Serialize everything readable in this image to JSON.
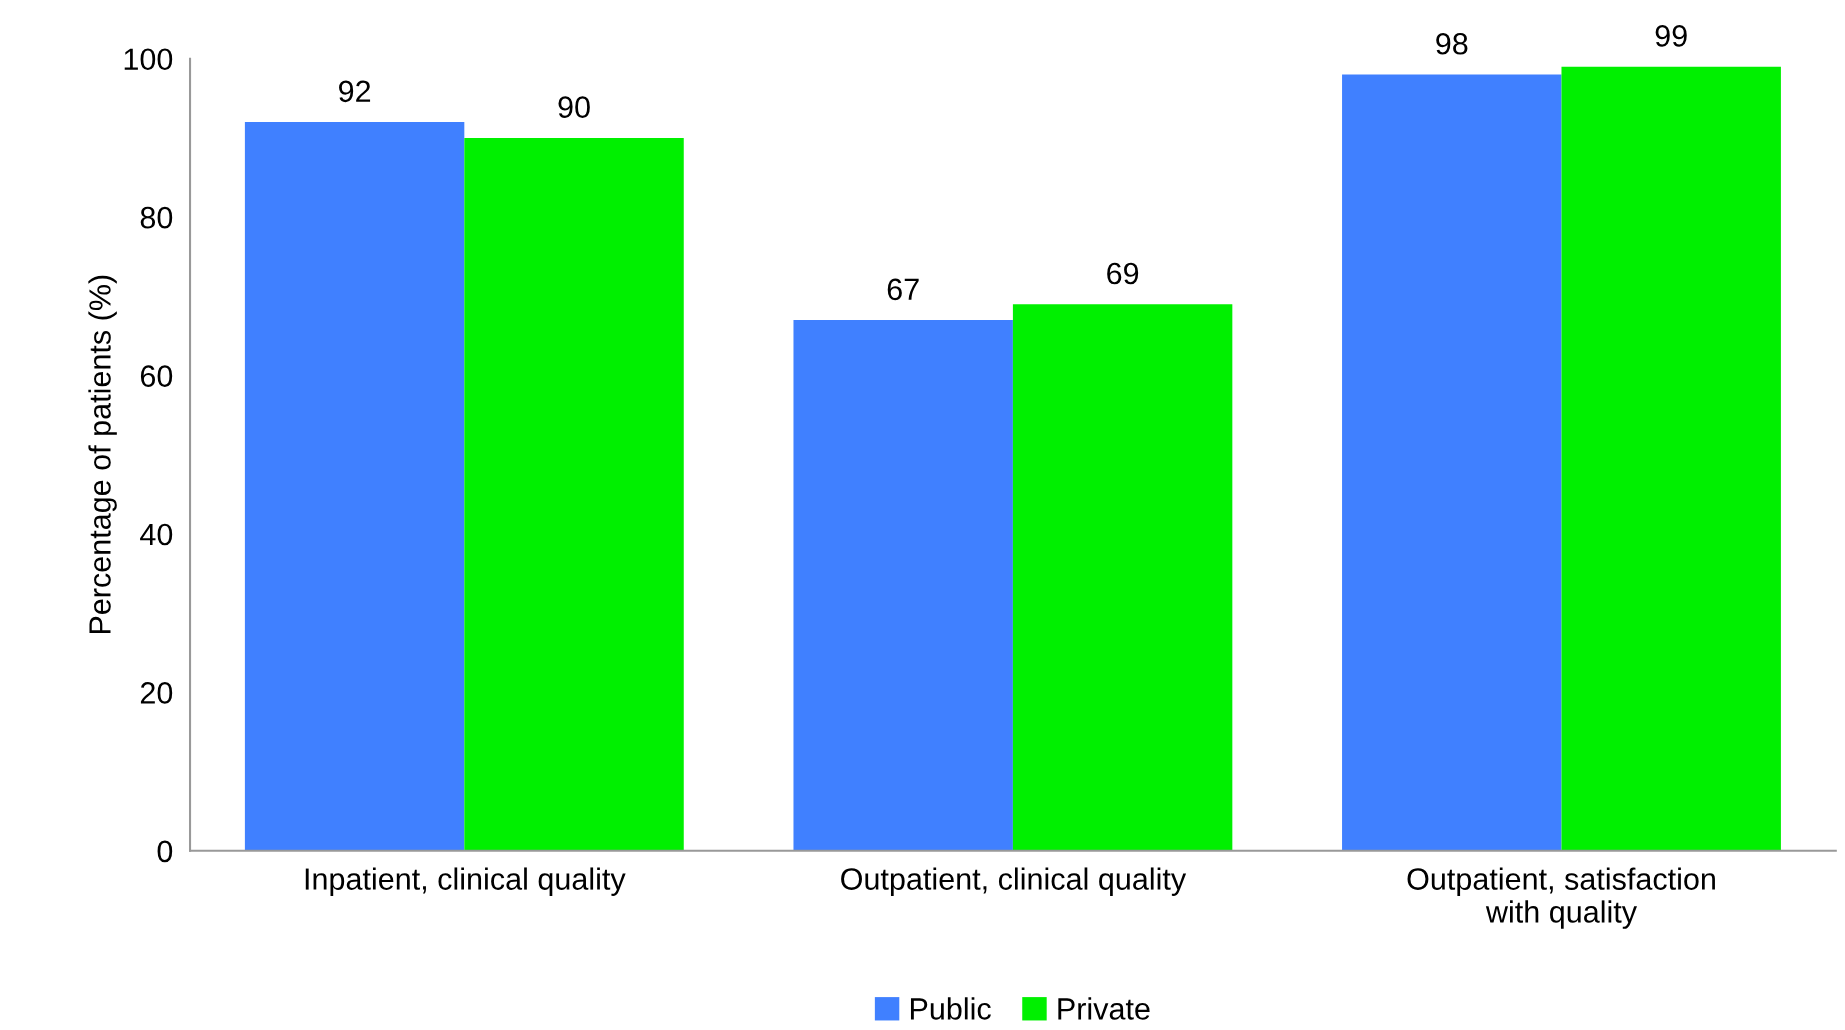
{
  "chart_data": {
    "type": "bar",
    "ylabel": "Percentage of patients (%)",
    "categories": [
      "Inpatient, clinical quality",
      "Outpatient, clinical quality",
      "Outpatient, satisfaction\nwith quality"
    ],
    "series": [
      {
        "name": "Public",
        "color": "#4080ff",
        "values": [
          92,
          67,
          98
        ]
      },
      {
        "name": "Private",
        "color": "#00f000",
        "values": [
          90,
          69,
          99
        ]
      }
    ],
    "ylim": [
      0,
      100
    ],
    "yticks": [
      0,
      20,
      40,
      60,
      80,
      100
    ],
    "grid": false,
    "legend": "bottom",
    "data_labels": true
  }
}
